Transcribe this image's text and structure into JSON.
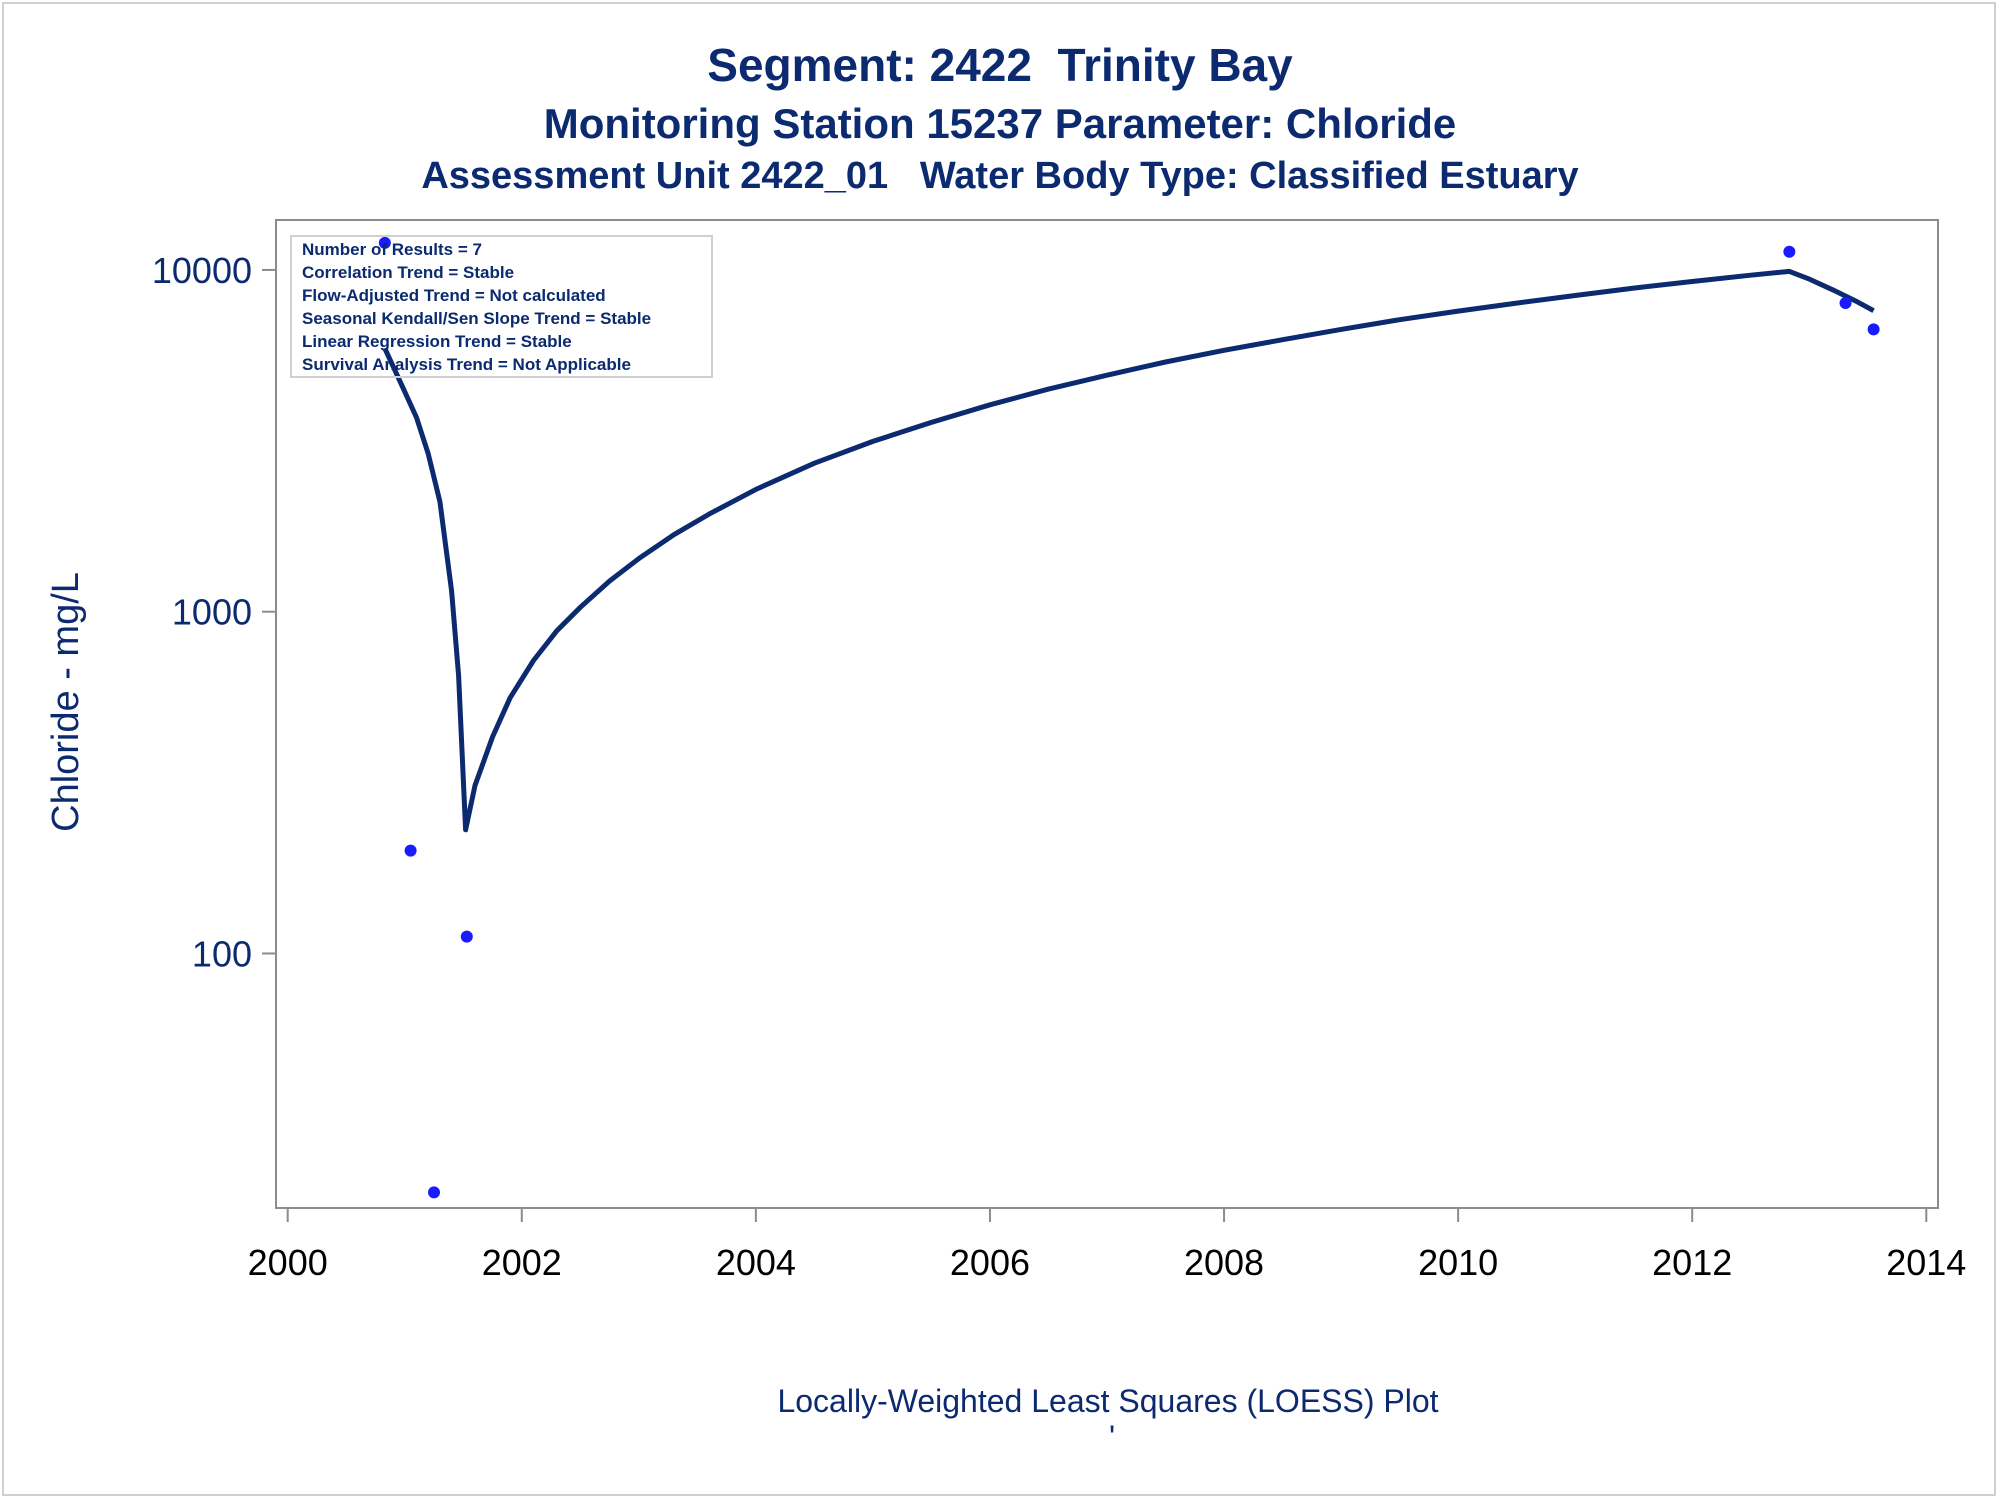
{
  "title": "Segment: 2422  Trinity Bay",
  "subtitle": "Monitoring Station 15237 Parameter: Chloride",
  "subtitle2": "Assessment Unit 2422_01   Water Body Type: Classified Estuary",
  "footnote": "Locally-Weighted Least Squares (LOESS) Plot",
  "footnote_mark": "'",
  "stats_box": [
    "Number of Results = 7",
    "Correlation Trend = Stable",
    "Flow-Adjusted Trend = Not calculated",
    "Seasonal Kendall/Sen Slope Trend = Stable",
    "Linear Regression Trend = Stable",
    "Survival Analysis Trend = Not Applicable"
  ],
  "colors": {
    "title": "#0b2a6f",
    "line": "#0b2a6f",
    "points": "#1a1aff",
    "axis": "#8c8c8c",
    "frame": "#cfcfcf"
  },
  "chart_data": {
    "type": "scatter",
    "title": "Segment: 2422  Trinity Bay",
    "xlabel": "",
    "ylabel": "Chloride - mg/L",
    "y_scale": "log",
    "xlim": [
      1999.9,
      2014.1
    ],
    "ylim": [
      18,
      14000
    ],
    "x_ticks": [
      2000,
      2002,
      2004,
      2006,
      2008,
      2010,
      2012,
      2014
    ],
    "x_tick_labels": [
      "2000",
      "2002",
      "2004",
      "2006",
      "2008",
      "2010",
      "2012",
      "2014"
    ],
    "y_ticks": [
      100,
      1000,
      10000
    ],
    "y_tick_labels": [
      "100",
      "1000",
      "10000"
    ],
    "grid": false,
    "legend": "none",
    "points": [
      {
        "x": 2000.83,
        "y": 12000
      },
      {
        "x": 2001.05,
        "y": 200
      },
      {
        "x": 2001.25,
        "y": 20
      },
      {
        "x": 2001.53,
        "y": 112
      },
      {
        "x": 2012.83,
        "y": 11300
      },
      {
        "x": 2013.31,
        "y": 8000
      },
      {
        "x": 2013.55,
        "y": 6700
      }
    ],
    "loess_curve": [
      {
        "x": 2000.83,
        "y": 5900
      },
      {
        "x": 2000.95,
        "y": 4800
      },
      {
        "x": 2001.1,
        "y": 3700
      },
      {
        "x": 2001.2,
        "y": 2900
      },
      {
        "x": 2001.3,
        "y": 2100
      },
      {
        "x": 2001.4,
        "y": 1150
      },
      {
        "x": 2001.46,
        "y": 650
      },
      {
        "x": 2001.52,
        "y": 230
      },
      {
        "x": 2001.6,
        "y": 310
      },
      {
        "x": 2001.75,
        "y": 430
      },
      {
        "x": 2001.9,
        "y": 560
      },
      {
        "x": 2002.1,
        "y": 720
      },
      {
        "x": 2002.3,
        "y": 880
      },
      {
        "x": 2002.5,
        "y": 1030
      },
      {
        "x": 2002.75,
        "y": 1230
      },
      {
        "x": 2003.0,
        "y": 1430
      },
      {
        "x": 2003.3,
        "y": 1680
      },
      {
        "x": 2003.6,
        "y": 1930
      },
      {
        "x": 2004.0,
        "y": 2280
      },
      {
        "x": 2004.5,
        "y": 2720
      },
      {
        "x": 2005.0,
        "y": 3150
      },
      {
        "x": 2005.5,
        "y": 3580
      },
      {
        "x": 2006.0,
        "y": 4030
      },
      {
        "x": 2006.5,
        "y": 4480
      },
      {
        "x": 2007.0,
        "y": 4920
      },
      {
        "x": 2007.5,
        "y": 5380
      },
      {
        "x": 2008.0,
        "y": 5820
      },
      {
        "x": 2008.5,
        "y": 6250
      },
      {
        "x": 2009.0,
        "y": 6700
      },
      {
        "x": 2009.5,
        "y": 7150
      },
      {
        "x": 2010.0,
        "y": 7580
      },
      {
        "x": 2010.5,
        "y": 8000
      },
      {
        "x": 2011.0,
        "y": 8420
      },
      {
        "x": 2011.5,
        "y": 8850
      },
      {
        "x": 2012.0,
        "y": 9250
      },
      {
        "x": 2012.5,
        "y": 9650
      },
      {
        "x": 2012.83,
        "y": 9900
      },
      {
        "x": 2013.0,
        "y": 9400
      },
      {
        "x": 2013.2,
        "y": 8750
      },
      {
        "x": 2013.4,
        "y": 8100
      },
      {
        "x": 2013.55,
        "y": 7600
      }
    ]
  }
}
